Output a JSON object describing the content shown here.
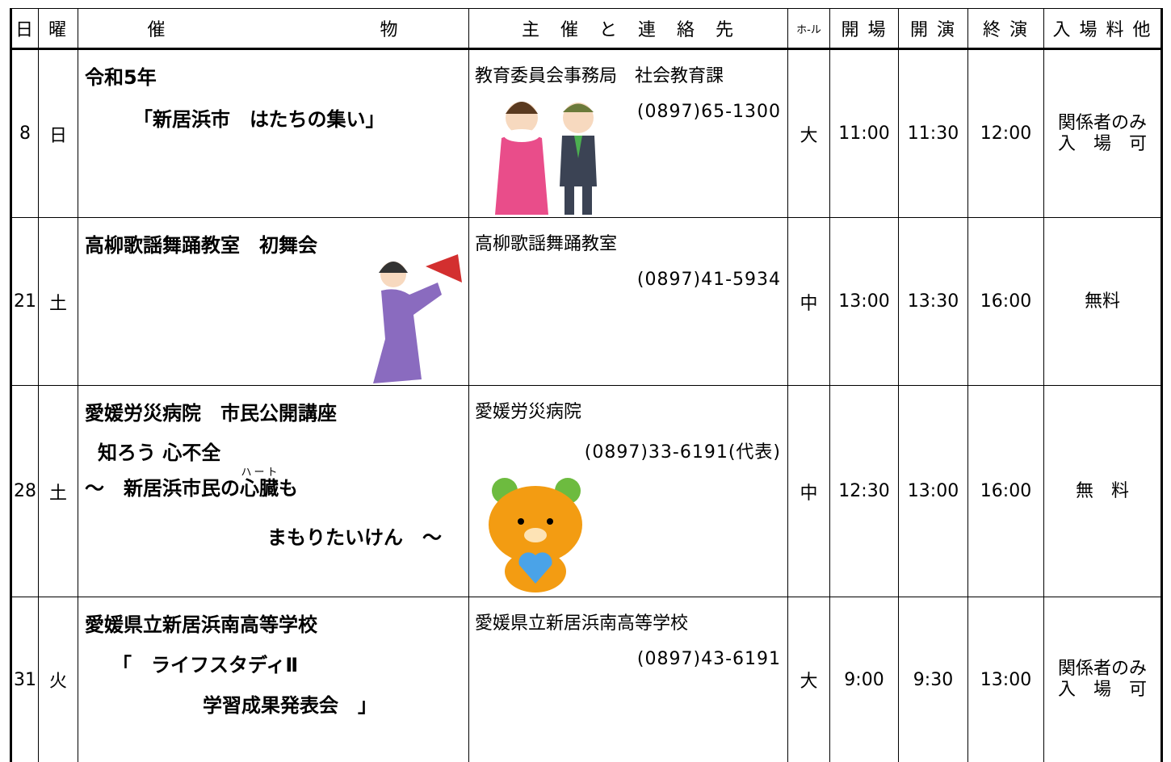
{
  "header": {
    "cells": [
      "日",
      "曜",
      "催　　　　　　　　　　　物",
      "主　催　と　連　絡　先",
      "ホ-ル",
      "開 場",
      "開 演",
      "終 演",
      "入 場 料 他"
    ]
  },
  "rows": [
    {
      "day": "8",
      "weekday": "日",
      "event": [
        "令和5年",
        "「新居浜市　はたちの集い」"
      ],
      "contact": {
        "name": "教育委員会事務局　社会教育課",
        "phone": "(0897)65-1300"
      },
      "hall": "大",
      "open": "11:00",
      "start": "11:30",
      "end": "12:00",
      "fee": [
        "関係者のみ",
        "入　場　可"
      ]
    },
    {
      "day": "21",
      "weekday": "土",
      "event": [
        "高柳歌謡舞踊教室　初舞会"
      ],
      "contact": {
        "name": "高柳歌謡舞踊教室",
        "phone": "(0897)41-5934"
      },
      "hall": "中",
      "open": "13:00",
      "start": "13:30",
      "end": "16:00",
      "fee": [
        "無料"
      ]
    },
    {
      "day": "28",
      "weekday": "土",
      "event": [
        "愛媛労災病院　市民公開講座",
        "知ろう 心不全",
        {
          "before": "～　新居浜市民の",
          "base": "心臓",
          "ruby": "ハート",
          "after": "も"
        },
        "まもりたいけん　～"
      ],
      "contact": {
        "name": "愛媛労災病院",
        "phone": "(0897)33-6191(代表)"
      },
      "hall": "中",
      "open": "12:30",
      "start": "13:00",
      "end": "16:00",
      "fee": [
        "無　料"
      ]
    },
    {
      "day": "31",
      "weekday": "火",
      "event": [
        "愛媛県立新居浜南高等学校",
        "「　ライフスタディⅡ",
        "学習成果発表会　」"
      ],
      "contact": {
        "name": "愛媛県立新居浜南高等学校",
        "phone": "(0897)43-6191"
      },
      "hall": "大",
      "open": "9:00",
      "start": "9:30",
      "end": "13:00",
      "fee": [
        "関係者のみ",
        "入　場　可"
      ]
    }
  ]
}
